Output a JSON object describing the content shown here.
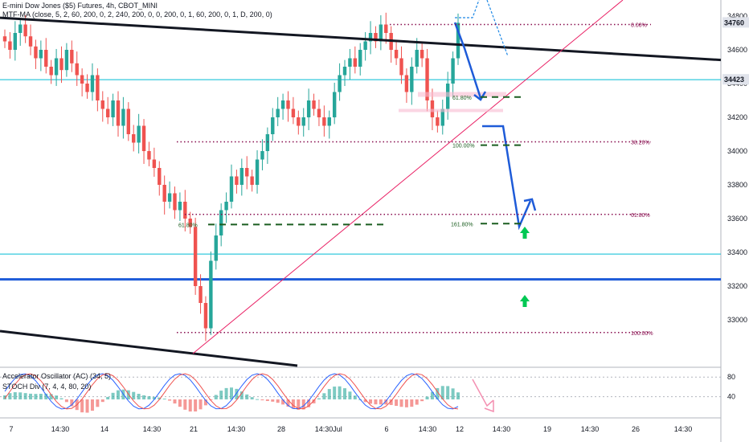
{
  "header": {
    "symbol_title": "E-mini Dow Jones ($5) Futures, 4h, CBOT_MINI",
    "indicator_label": "MTF-MA (close, 5, 2, 60, 200, 0, 2, 240, 200, 0, 0, 200, 0, 1, 60, 200, 0, 1, D, 200, 0)"
  },
  "oscillator": {
    "label_ac": "Accelerator Oscillator (AC) (34, 5)",
    "label_stoch": "STOCH Div (7, 4, 4, 80, 20)",
    "levels": [
      80,
      40
    ],
    "level_labels": [
      "80",
      "40"
    ]
  },
  "chart_data": {
    "type": "candlestick",
    "symbol": "E-mini Dow Jones ($5) Futures",
    "interval": "4h",
    "exchange": "CBOT_MINI",
    "ylim": [
      32850,
      34850
    ],
    "y_ticks": [
      33000,
      33200,
      33400,
      33600,
      33800,
      34000,
      34200,
      34400,
      34600,
      34800
    ],
    "x_ticks": [
      "7",
      "14:30",
      "14",
      "14:30",
      "21",
      "14:30",
      "28",
      "14:30",
      "Jul",
      "6",
      "14:30",
      "12",
      "14:30",
      "19",
      "14:30",
      "26",
      "14:30"
    ],
    "last_price": 34760,
    "marked_price": 34423,
    "horizontal_levels": [
      {
        "price": 34423,
        "color": "#00bcd4",
        "style": "solid"
      },
      {
        "price": 33390,
        "color": "#00bcd4",
        "style": "solid"
      },
      {
        "price": 33240,
        "color": "#1e5bd8",
        "style": "solid-thick"
      }
    ],
    "fib_levels_right": [
      {
        "price": 34750,
        "label": "0.00%"
      },
      {
        "price": 34055,
        "label": "38.20%"
      },
      {
        "price": 33625,
        "label": "61.80%"
      },
      {
        "price": 32925,
        "label": "100.00%"
      }
    ],
    "fib_levels_dashed": [
      {
        "price": 34320,
        "label": "61.80%"
      },
      {
        "price": 34035,
        "label": "100.00%"
      },
      {
        "price": 33570,
        "label": "161.80%"
      },
      {
        "price": 33565,
        "label": "61.80%"
      }
    ],
    "closes": [
      34650,
      34600,
      34700,
      34750,
      34680,
      34620,
      34550,
      34600,
      34500,
      34450,
      34550,
      34480,
      34600,
      34520,
      34450,
      34400,
      34350,
      34450,
      34300,
      34250,
      34200,
      34300,
      34150,
      34250,
      34100,
      34050,
      34150,
      34000,
      33950,
      33900,
      33800,
      33700,
      33750,
      33650,
      33700,
      33600,
      33550,
      33200,
      33100,
      32950,
      33350,
      33500,
      33650,
      33700,
      33850,
      33800,
      33900,
      33850,
      33800,
      33950,
      34000,
      34100,
      34200,
      34250,
      34300,
      34250,
      34200,
      34150,
      34200,
      34300,
      34250,
      34200,
      34150,
      34200,
      34350,
      34450,
      34500,
      34550,
      34500,
      34600,
      34650,
      34700,
      34650,
      34750,
      34700,
      34600,
      34550,
      34450,
      34350,
      34500,
      34600,
      34550,
      34300,
      34200,
      34150,
      34250,
      34400,
      34550,
      34760
    ]
  }
}
